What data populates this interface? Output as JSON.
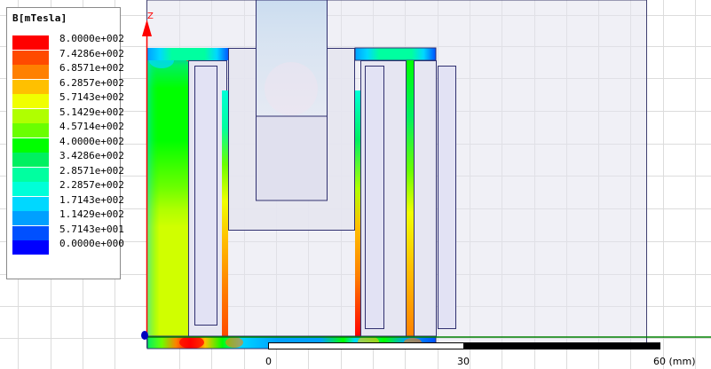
{
  "legend": {
    "title": "B[mTesla]",
    "entries": [
      {
        "label": "8.0000e+002",
        "color": "#ff0000"
      },
      {
        "label": "7.4286e+002",
        "color": "#ff4a00"
      },
      {
        "label": "6.8571e+002",
        "color": "#ff8000"
      },
      {
        "label": "6.2857e+002",
        "color": "#ffc000"
      },
      {
        "label": "5.7143e+002",
        "color": "#f0ff00"
      },
      {
        "label": "5.1429e+002",
        "color": "#b0ff00"
      },
      {
        "label": "4.5714e+002",
        "color": "#6aff00"
      },
      {
        "label": "4.0000e+002",
        "color": "#00ff00"
      },
      {
        "label": "3.4286e+002",
        "color": "#00f060"
      },
      {
        "label": "2.8571e+002",
        "color": "#00ffa0"
      },
      {
        "label": "2.2857e+002",
        "color": "#00ffd8"
      },
      {
        "label": "1.7143e+002",
        "color": "#00d8ff"
      },
      {
        "label": "1.1429e+002",
        "color": "#00a0ff"
      },
      {
        "label": "5.7143e+001",
        "color": "#0050ff"
      },
      {
        "label": "0.0000e+000",
        "color": "#0000ff"
      }
    ]
  },
  "axes": {
    "z_label": "Z",
    "z_color": "#ff0000",
    "r_color": "#008000"
  },
  "scale_bar": {
    "tick_labels": [
      "0",
      "30",
      "60 (mm)"
    ]
  }
}
